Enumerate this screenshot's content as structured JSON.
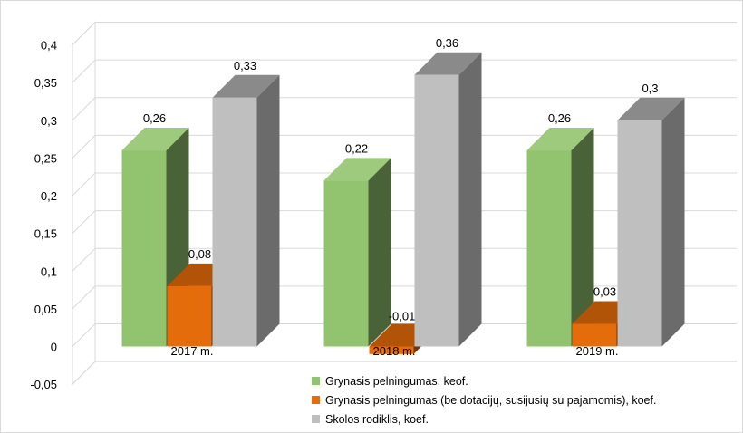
{
  "chart_data": {
    "type": "bar",
    "title": "",
    "xlabel": "",
    "ylabel": "",
    "ylim": [
      -0.05,
      0.4
    ],
    "yticks": [
      -0.05,
      0,
      0.05,
      0.1,
      0.15,
      0.2,
      0.25,
      0.3,
      0.35,
      0.4
    ],
    "ytick_labels": [
      "-0,05",
      "0",
      "0,05",
      "0,1",
      "0,15",
      "0,2",
      "0,25",
      "0,3",
      "0,35",
      "0,4"
    ],
    "grid": true,
    "legend_position": "bottom",
    "style": "3d-clustered-column",
    "categories": [
      "2017 m.",
      "2018 m.",
      "2019 m."
    ],
    "series": [
      {
        "name": "Grynasis pelningumas, keof.",
        "color": "#92c46f",
        "values": [
          0.26,
          0.22,
          0.26
        ],
        "labels": [
          "0,26",
          "0,22",
          "0,26"
        ]
      },
      {
        "name": "Grynasis pelningumas (be dotacijų, susijusių su pajamomis), koef.",
        "color": "#e46c0a",
        "values": [
          0.08,
          -0.01,
          0.03
        ],
        "labels": [
          "0,08",
          "-0,01",
          "0,03"
        ]
      },
      {
        "name": "Skolos rodiklis, koef.",
        "color": "#bfbfbf",
        "values": [
          0.33,
          0.36,
          0.3
        ],
        "labels": [
          "0,33",
          "0,36",
          "0,3"
        ]
      }
    ]
  }
}
